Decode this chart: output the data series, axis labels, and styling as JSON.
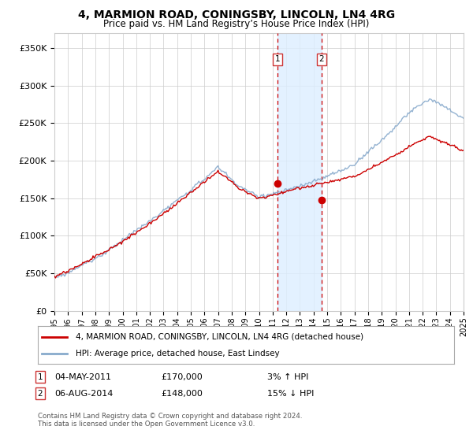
{
  "title": "4, MARMION ROAD, CONINGSBY, LINCOLN, LN4 4RG",
  "subtitle": "Price paid vs. HM Land Registry’s House Price Index (HPI)",
  "ylabel_ticks": [
    "£0",
    "£50K",
    "£100K",
    "£150K",
    "£200K",
    "£250K",
    "£300K",
    "£350K"
  ],
  "ylim": [
    0,
    370000
  ],
  "yticks": [
    0,
    50000,
    100000,
    150000,
    200000,
    250000,
    300000,
    350000
  ],
  "xstart_year": 1995,
  "xend_year": 2025,
  "legend_line1": "4, MARMION ROAD, CONINGSBY, LINCOLN, LN4 4RG (detached house)",
  "legend_line2": "HPI: Average price, detached house, East Lindsey",
  "marker1_date": "04-MAY-2011",
  "marker1_price": 170000,
  "marker1_year": 2011.37,
  "marker1_label": "3% ↑ HPI",
  "marker2_date": "06-AUG-2014",
  "marker2_price": 148000,
  "marker2_year": 2014.58,
  "marker2_label": "15% ↓ HPI",
  "footer": "Contains HM Land Registry data © Crown copyright and database right 2024.\nThis data is licensed under the Open Government Licence v3.0.",
  "red_color": "#cc0000",
  "blue_color": "#88aacc",
  "bg_color": "#ffffff",
  "grid_color": "#cccccc",
  "shade_color": "#ddeeff",
  "title_fontsize": 10,
  "subtitle_fontsize": 9
}
